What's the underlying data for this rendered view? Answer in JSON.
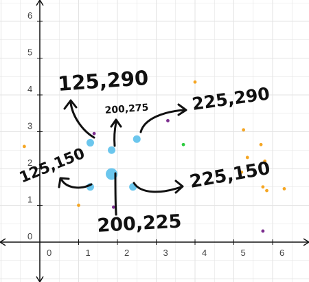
{
  "chart_data": {
    "type": "scatter",
    "grid": true,
    "xlim": [
      -1,
      6.8
    ],
    "ylim": [
      -1,
      6.3
    ],
    "x_ticks": [
      "0",
      "1",
      "2",
      "3",
      "4",
      "5",
      "6"
    ],
    "y_ticks": [
      "0",
      "1",
      "2",
      "3",
      "4",
      "5",
      "6"
    ],
    "highlighted_points": [
      {
        "x": 1.3,
        "y": 2.7,
        "size": "small"
      },
      {
        "x": 1.85,
        "y": 2.5,
        "size": "small"
      },
      {
        "x": 2.5,
        "y": 2.8,
        "size": "small"
      },
      {
        "x": 1.3,
        "y": 1.5,
        "size": "small"
      },
      {
        "x": 1.85,
        "y": 1.85,
        "size": "large"
      },
      {
        "x": 2.4,
        "y": 1.5,
        "size": "small"
      }
    ],
    "background_points": [
      {
        "x": -0.4,
        "y": 2.6,
        "color": "#f5a623"
      },
      {
        "x": 1.0,
        "y": 1.0,
        "color": "#f5a623"
      },
      {
        "x": 1.4,
        "y": 2.95,
        "color": "#7b2d8e"
      },
      {
        "x": 1.9,
        "y": 0.95,
        "color": "#7b2d8e"
      },
      {
        "x": 3.3,
        "y": 3.3,
        "color": "#7b2d8e"
      },
      {
        "x": 3.7,
        "y": 2.65,
        "color": "#2ecc40"
      },
      {
        "x": 4.0,
        "y": 4.35,
        "color": "#f5a623"
      },
      {
        "x": 5.25,
        "y": 3.05,
        "color": "#f5a623"
      },
      {
        "x": 5.35,
        "y": 2.3,
        "color": "#f5a623"
      },
      {
        "x": 5.7,
        "y": 2.65,
        "color": "#f5a623"
      },
      {
        "x": 5.8,
        "y": 2.2,
        "color": "#f5a623"
      },
      {
        "x": 5.2,
        "y": 1.9,
        "color": "#f5a623"
      },
      {
        "x": 5.75,
        "y": 1.5,
        "color": "#f5a623"
      },
      {
        "x": 5.85,
        "y": 1.4,
        "color": "#f5a623"
      },
      {
        "x": 6.3,
        "y": 1.45,
        "color": "#f5a623"
      },
      {
        "x": 5.75,
        "y": 0.3,
        "color": "#7b2d8e"
      }
    ],
    "annotations": [
      "125,290",
      "200,275",
      "225,290",
      "125,150",
      "225,150",
      "200,225"
    ]
  },
  "colors": {
    "highlight": "#5bc0eb",
    "grid": "#e3e3e3",
    "axis": "#111111",
    "ink": "#111111"
  }
}
